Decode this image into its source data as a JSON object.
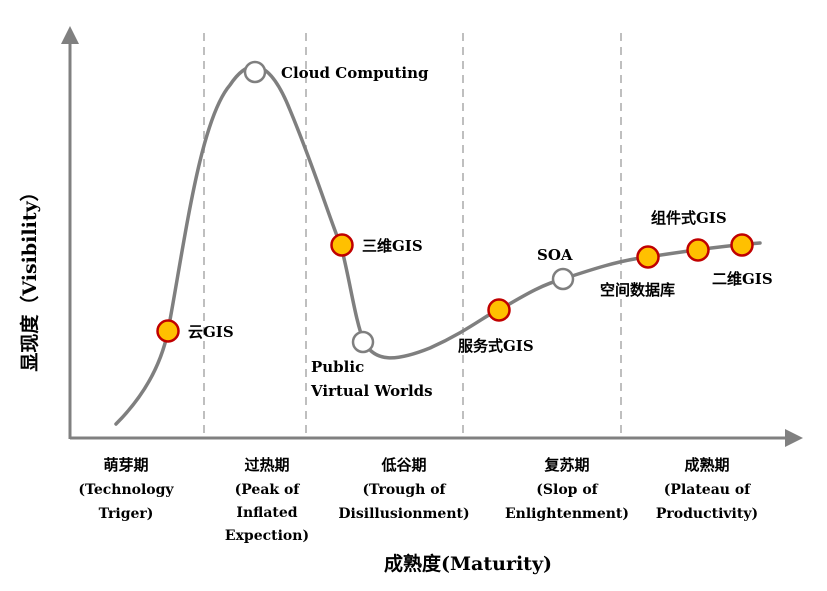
{
  "axes": {
    "x_title": "成熟度(Maturity)",
    "y_title": "显现度（Visibility）"
  },
  "phases": [
    {
      "cn": "萌芽期",
      "en": [
        "(Technology",
        "Triger)"
      ]
    },
    {
      "cn": "过热期",
      "en": [
        "(Peak of",
        "Inflated",
        "Expection)"
      ]
    },
    {
      "cn": "低谷期",
      "en": [
        "(Trough of",
        "Disillusionment)"
      ]
    },
    {
      "cn": "复苏期",
      "en": [
        "(Slop of",
        "Enlightenment)"
      ]
    },
    {
      "cn": "成熟期",
      "en": [
        "(Plateau of",
        "Productivity)"
      ]
    }
  ],
  "points": [
    {
      "label": [
        "云GIS"
      ],
      "style": "highlight"
    },
    {
      "label": [
        "Cloud Computing"
      ],
      "style": "hollow"
    },
    {
      "label": [
        "三维GIS"
      ],
      "style": "highlight"
    },
    {
      "label": [
        "Public",
        "Virtual Worlds"
      ],
      "style": "hollow"
    },
    {
      "label": [
        "服务式GIS"
      ],
      "style": "highlight"
    },
    {
      "label": [
        "SOA"
      ],
      "style": "hollow"
    },
    {
      "label": [
        "空间数据库"
      ],
      "style": "highlight"
    },
    {
      "label": [
        "组件式GIS"
      ],
      "style": "highlight"
    },
    {
      "label": [
        "二维GIS"
      ],
      "style": "highlight"
    }
  ],
  "colors": {
    "axis": "#808080",
    "curve": "#7f7f7f",
    "divider": "#bfbfbf",
    "highlight_fill": "#ffc000",
    "highlight_stroke": "#c00000",
    "hollow_fill": "#ffffff",
    "hollow_stroke": "#7f7f7f"
  }
}
